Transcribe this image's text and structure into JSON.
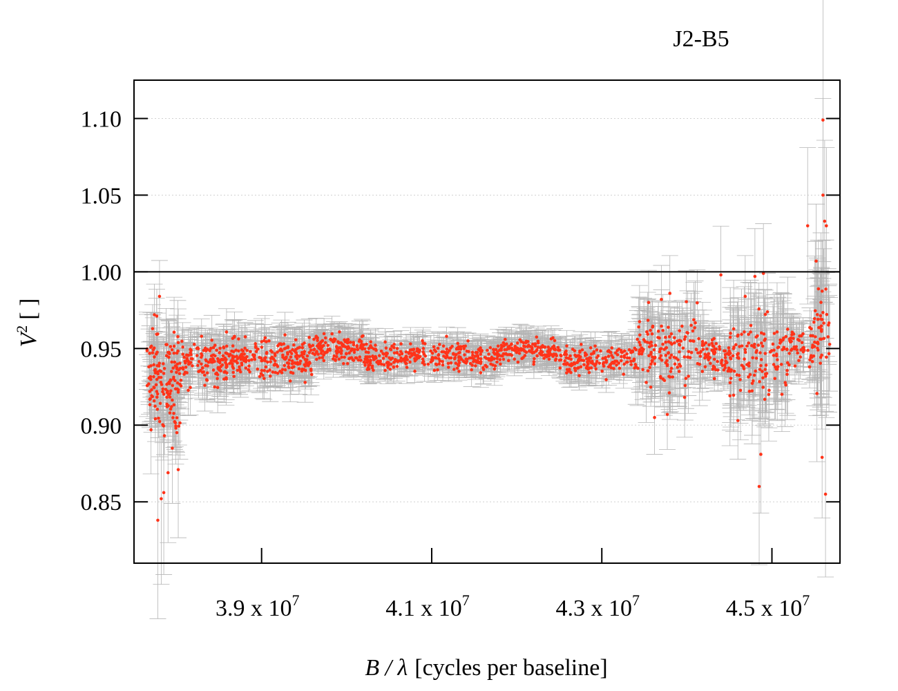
{
  "chart_data": {
    "type": "scatter",
    "title": "J2-B5",
    "xlabel": {
      "var": "B / λ",
      "unit": "[cycles per baseline]"
    },
    "ylabel": {
      "base": "V",
      "sup": "2",
      "unit": "[ ]"
    },
    "xlim": [
      37500000,
      45800000
    ],
    "ylim": [
      0.81,
      1.125
    ],
    "yticks": [
      {
        "value": 0.85,
        "label": "0.85"
      },
      {
        "value": 0.9,
        "label": "0.90"
      },
      {
        "value": 0.95,
        "label": "0.95"
      },
      {
        "value": 1.0,
        "label": "1.00"
      },
      {
        "value": 1.05,
        "label": "1.05"
      },
      {
        "value": 1.1,
        "label": "1.10"
      }
    ],
    "xticks": [
      {
        "value": 39000000,
        "mant": "3.9 x 10",
        "exp": "7"
      },
      {
        "value": 41000000,
        "mant": "4.1 x 10",
        "exp": "7"
      },
      {
        "value": 43000000,
        "mant": "4.3 x 10",
        "exp": "7"
      },
      {
        "value": 45000000,
        "mant": "4.5 x 10",
        "exp": "7"
      }
    ],
    "reference_line": 1.0,
    "grid": "horizontal dotted",
    "legend": "none",
    "colors": {
      "point": "#ff3319",
      "errorbar": "#b4b4b4",
      "grid": "#d0d0d0",
      "axis": "#000000"
    },
    "series": [
      {
        "marker": "point with error bars",
        "regions": [
          {
            "x": [
              37650000,
              38050000
            ],
            "mean": 0.93,
            "spread": 0.03,
            "err": 0.018,
            "n": 140
          },
          {
            "x": [
              38050000,
              38700000
            ],
            "mean": 0.942,
            "spread": 0.014,
            "err": 0.013,
            "n": 150
          },
          {
            "x": [
              38700000,
              39600000
            ],
            "mean": 0.943,
            "spread": 0.012,
            "err": 0.012,
            "n": 190
          },
          {
            "x": [
              39600000,
              40200000
            ],
            "mean": 0.95,
            "spread": 0.008,
            "err": 0.009,
            "n": 130
          },
          {
            "x": [
              40200000,
              41800000
            ],
            "mean": 0.945,
            "spread": 0.008,
            "err": 0.008,
            "n": 310
          },
          {
            "x": [
              41800000,
              42500000
            ],
            "mean": 0.949,
            "spread": 0.007,
            "err": 0.008,
            "n": 140
          },
          {
            "x": [
              42500000,
              43400000
            ],
            "mean": 0.943,
            "spread": 0.008,
            "err": 0.009,
            "n": 160
          },
          {
            "x": [
              43400000,
              44200000
            ],
            "mean": 0.947,
            "spread": 0.02,
            "err": 0.02,
            "n": 150
          },
          {
            "x": [
              44200000,
              44500000
            ],
            "mean": 0.946,
            "spread": 0.009,
            "err": 0.01,
            "n": 60
          },
          {
            "x": [
              44500000,
              45200000
            ],
            "mean": 0.945,
            "spread": 0.025,
            "err": 0.025,
            "n": 130
          },
          {
            "x": [
              45200000,
              45500000
            ],
            "mean": 0.952,
            "spread": 0.012,
            "err": 0.012,
            "n": 50
          },
          {
            "x": [
              45500000,
              45680000
            ],
            "mean": 0.958,
            "spread": 0.03,
            "err": 0.035,
            "n": 40
          }
        ],
        "notable_points": [
          {
            "x": 37700000,
            "y": 0.897
          },
          {
            "x": 37780000,
            "y": 0.838
          },
          {
            "x": 37820000,
            "y": 0.852
          },
          {
            "x": 37850000,
            "y": 0.856
          },
          {
            "x": 37900000,
            "y": 0.869
          },
          {
            "x": 37950000,
            "y": 0.885
          },
          {
            "x": 38020000,
            "y": 0.871
          },
          {
            "x": 37800000,
            "y": 0.984
          },
          {
            "x": 37740000,
            "y": 0.972
          },
          {
            "x": 43550000,
            "y": 0.98
          },
          {
            "x": 43700000,
            "y": 0.982
          },
          {
            "x": 43800000,
            "y": 0.986
          },
          {
            "x": 43620000,
            "y": 0.905
          },
          {
            "x": 43770000,
            "y": 0.907
          },
          {
            "x": 44400000,
            "y": 0.998
          },
          {
            "x": 44800000,
            "y": 0.997
          },
          {
            "x": 44900000,
            "y": 0.999
          },
          {
            "x": 44600000,
            "y": 0.903
          },
          {
            "x": 44870000,
            "y": 0.881
          },
          {
            "x": 44850000,
            "y": 0.86
          },
          {
            "x": 45600000,
            "y": 1.099
          },
          {
            "x": 45600000,
            "y": 1.05
          },
          {
            "x": 45620000,
            "y": 1.033
          },
          {
            "x": 45640000,
            "y": 1.03
          },
          {
            "x": 45420000,
            "y": 1.03
          },
          {
            "x": 45520000,
            "y": 1.007
          },
          {
            "x": 45590000,
            "y": 0.879
          },
          {
            "x": 45630000,
            "y": 0.855
          }
        ]
      }
    ]
  }
}
